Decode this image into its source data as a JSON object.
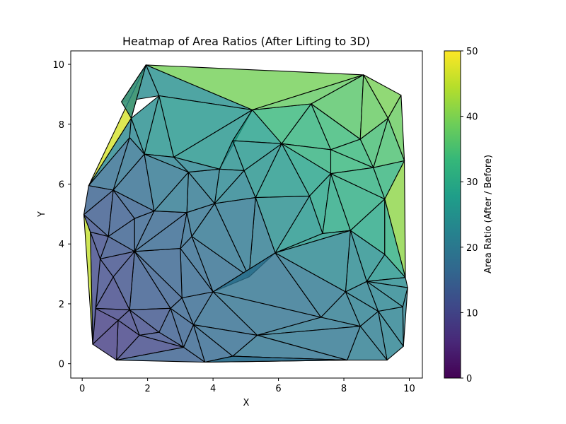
{
  "chart_data": {
    "type": "heatmap",
    "title": "Heatmap of Area Ratios (After Lifting to 3D)",
    "xlabel": "X",
    "ylabel": "Y",
    "xlim": [
      -0.35,
      10.4
    ],
    "ylim": [
      -0.48,
      10.45
    ],
    "xticks": [
      0,
      2,
      4,
      6,
      8,
      10
    ],
    "yticks": [
      0,
      2,
      4,
      6,
      8,
      10
    ],
    "colorbar": {
      "label": "Area Ratio (After / Before)",
      "range": [
        0,
        50
      ],
      "ticks": [
        0,
        10,
        20,
        30,
        40,
        50
      ],
      "colormap": [
        "#440154",
        "#482878",
        "#3e4989",
        "#31688e",
        "#26828e",
        "#1f9e89",
        "#35b779",
        "#6ece58",
        "#b5de2b",
        "#fde725"
      ]
    },
    "points": [
      [
        1.95,
        9.98
      ],
      [
        8.6,
        9.65
      ],
      [
        9.75,
        8.97
      ],
      [
        9.85,
        6.78
      ],
      [
        9.88,
        2.88
      ],
      [
        9.95,
        2.54
      ],
      [
        9.82,
        0.58
      ],
      [
        9.32,
        0.12
      ],
      [
        8.1,
        0.12
      ],
      [
        3.75,
        0.05
      ],
      [
        1.05,
        0.12
      ],
      [
        0.32,
        0.65
      ],
      [
        0.05,
        4.98
      ],
      [
        0.2,
        5.95
      ],
      [
        1.5,
        8.2
      ],
      [
        2.35,
        8.95
      ],
      [
        5.2,
        8.48
      ],
      [
        7.0,
        8.68
      ],
      [
        1.45,
        7.55
      ],
      [
        2.8,
        6.9
      ],
      [
        4.2,
        6.5
      ],
      [
        3.25,
        6.4
      ],
      [
        1.9,
        7.0
      ],
      [
        0.95,
        5.8
      ],
      [
        2.2,
        5.1
      ],
      [
        3.2,
        5.05
      ],
      [
        1.6,
        4.85
      ],
      [
        0.25,
        4.4
      ],
      [
        0.8,
        4.25
      ],
      [
        1.6,
        3.75
      ],
      [
        3.0,
        3.85
      ],
      [
        3.35,
        4.25
      ],
      [
        4.05,
        5.35
      ],
      [
        5.3,
        5.55
      ],
      [
        6.95,
        5.6
      ],
      [
        7.6,
        6.35
      ],
      [
        8.9,
        6.55
      ],
      [
        9.25,
        5.5
      ],
      [
        7.35,
        4.35
      ],
      [
        5.9,
        3.7
      ],
      [
        5.1,
        2.9
      ],
      [
        4.0,
        2.4
      ],
      [
        3.05,
        2.2
      ],
      [
        2.7,
        1.85
      ],
      [
        1.45,
        1.8
      ],
      [
        0.4,
        1.85
      ],
      [
        0.55,
        3.5
      ],
      [
        0.95,
        2.9
      ],
      [
        1.1,
        1.45
      ],
      [
        1.75,
        0.95
      ],
      [
        2.35,
        1.05
      ],
      [
        3.1,
        0.55
      ],
      [
        3.4,
        1.3
      ],
      [
        4.6,
        0.25
      ],
      [
        5.35,
        0.95
      ],
      [
        7.3,
        1.55
      ],
      [
        8.05,
        2.4
      ],
      [
        8.5,
        1.25
      ],
      [
        9.05,
        1.75
      ],
      [
        9.8,
        1.9
      ],
      [
        8.7,
        2.75
      ],
      [
        8.2,
        4.45
      ],
      [
        9.25,
        3.65
      ],
      [
        7.6,
        7.15
      ],
      [
        8.5,
        7.5
      ],
      [
        9.35,
        8.2
      ],
      [
        6.1,
        7.35
      ],
      [
        4.95,
        6.45
      ],
      [
        4.6,
        7.45
      ],
      [
        1.2,
        8.75
      ]
    ],
    "triangles": [
      [
        0,
        16,
        1,
        39.2
      ],
      [
        0,
        15,
        16,
        24.6
      ],
      [
        0,
        69,
        15,
        23.8
      ],
      [
        0,
        14,
        69,
        47.5
      ],
      [
        0,
        13,
        14,
        46.8
      ],
      [
        14,
        13,
        18,
        23.1
      ],
      [
        14,
        18,
        22,
        22.4
      ],
      [
        14,
        22,
        15,
        24.3
      ],
      [
        15,
        22,
        19,
        25.2
      ],
      [
        15,
        19,
        16,
        25.9
      ],
      [
        16,
        19,
        20,
        25.6
      ],
      [
        16,
        20,
        68,
        26.8
      ],
      [
        16,
        68,
        66,
        28.1
      ],
      [
        16,
        66,
        17,
        33.2
      ],
      [
        16,
        17,
        1,
        37.6
      ],
      [
        1,
        17,
        64,
        36.5
      ],
      [
        1,
        64,
        65,
        37.8
      ],
      [
        1,
        65,
        2,
        39.4
      ],
      [
        2,
        65,
        3,
        38.1
      ],
      [
        65,
        36,
        3,
        35.2
      ],
      [
        64,
        36,
        65,
        34.6
      ],
      [
        17,
        63,
        64,
        33.7
      ],
      [
        17,
        66,
        63,
        32.4
      ],
      [
        66,
        35,
        63,
        31.8
      ],
      [
        63,
        35,
        36,
        32.9
      ],
      [
        63,
        36,
        64,
        33.3
      ],
      [
        3,
        36,
        37,
        32.5
      ],
      [
        3,
        37,
        4,
        41.2
      ],
      [
        36,
        35,
        37,
        31.6
      ],
      [
        35,
        61,
        37,
        30.7
      ],
      [
        37,
        61,
        62,
        29.5
      ],
      [
        37,
        62,
        4,
        31.4
      ],
      [
        62,
        60,
        4,
        25.6
      ],
      [
        4,
        60,
        5,
        23.8
      ],
      [
        60,
        59,
        5,
        22.6
      ],
      [
        5,
        59,
        6,
        21.4
      ],
      [
        59,
        58,
        6,
        21.8
      ],
      [
        58,
        7,
        6,
        21.5
      ],
      [
        58,
        57,
        7,
        20.8
      ],
      [
        57,
        8,
        7,
        20.5
      ],
      [
        56,
        57,
        58,
        21.1
      ],
      [
        56,
        58,
        60,
        21.9
      ],
      [
        58,
        59,
        60,
        22.3
      ],
      [
        56,
        60,
        61,
        23.2
      ],
      [
        60,
        62,
        61,
        24.7
      ],
      [
        34,
        35,
        66,
        28.5
      ],
      [
        34,
        66,
        33,
        26.3
      ],
      [
        33,
        66,
        67,
        25.1
      ],
      [
        67,
        66,
        68,
        26.0
      ],
      [
        67,
        68,
        20,
        24.8
      ],
      [
        32,
        20,
        67,
        22.7
      ],
      [
        32,
        67,
        33,
        22.3
      ],
      [
        34,
        38,
        35,
        28.9
      ],
      [
        38,
        61,
        35,
        29.8
      ],
      [
        39,
        34,
        33,
        24.2
      ],
      [
        39,
        38,
        34,
        25.9
      ],
      [
        39,
        61,
        38,
        26.5
      ],
      [
        39,
        56,
        61,
        22.8
      ],
      [
        40,
        39,
        33,
        20.2
      ],
      [
        40,
        33,
        32,
        19.5
      ],
      [
        31,
        32,
        40,
        19.1
      ],
      [
        31,
        40,
        41,
        17.8
      ],
      [
        41,
        40,
        39,
        18.6
      ],
      [
        41,
        39,
        55,
        18.9
      ],
      [
        39,
        56,
        55,
        19.7
      ],
      [
        55,
        56,
        57,
        20.3
      ],
      [
        41,
        55,
        54,
        18.4
      ],
      [
        54,
        55,
        57,
        19.6
      ],
      [
        54,
        57,
        8,
        19.3
      ],
      [
        53,
        54,
        8,
        18.7
      ],
      [
        53,
        8,
        9,
        17.9
      ],
      [
        52,
        41,
        54,
        17.4
      ],
      [
        52,
        54,
        53,
        17.1
      ],
      [
        52,
        53,
        9,
        16.5
      ],
      [
        51,
        52,
        9,
        15.8
      ],
      [
        42,
        41,
        52,
        16.4
      ],
      [
        30,
        31,
        41,
        16.9
      ],
      [
        30,
        41,
        42,
        16.3
      ],
      [
        43,
        42,
        52,
        15.6
      ],
      [
        43,
        52,
        51,
        15.1
      ],
      [
        50,
        43,
        51,
        14.2
      ],
      [
        29,
        30,
        42,
        15.4
      ],
      [
        29,
        42,
        43,
        14.6
      ],
      [
        44,
        29,
        43,
        13.9
      ],
      [
        44,
        43,
        50,
        12.5
      ],
      [
        49,
        44,
        50,
        10.9
      ],
      [
        49,
        50,
        51,
        11.8
      ],
      [
        49,
        51,
        10,
        10.6
      ],
      [
        48,
        44,
        49,
        10.2
      ],
      [
        48,
        49,
        10,
        9.4
      ],
      [
        11,
        48,
        10,
        8.7
      ],
      [
        45,
        48,
        11,
        8.9
      ],
      [
        45,
        44,
        48,
        9.8
      ],
      [
        45,
        47,
        44,
        10.4
      ],
      [
        46,
        47,
        45,
        11.3
      ],
      [
        46,
        29,
        47,
        11.6
      ],
      [
        47,
        29,
        44,
        12.1
      ],
      [
        28,
        29,
        46,
        12.7
      ],
      [
        27,
        28,
        46,
        11.4
      ],
      [
        27,
        46,
        11,
        10.8
      ],
      [
        12,
        27,
        11,
        45.5
      ],
      [
        12,
        28,
        27,
        12.2
      ],
      [
        12,
        23,
        28,
        13.6
      ],
      [
        28,
        23,
        26,
        14.2
      ],
      [
        28,
        26,
        29,
        14.5
      ],
      [
        26,
        24,
        29,
        15.5
      ],
      [
        24,
        25,
        29,
        15.9
      ],
      [
        25,
        30,
        29,
        16.2
      ],
      [
        25,
        31,
        30,
        17.2
      ],
      [
        25,
        32,
        31,
        18.3
      ],
      [
        21,
        32,
        25,
        19.4
      ],
      [
        21,
        20,
        32,
        21.2
      ],
      [
        24,
        21,
        25,
        19.8
      ],
      [
        23,
        24,
        26,
        15.1
      ],
      [
        23,
        22,
        24,
        17.6
      ],
      [
        22,
        21,
        24,
        19.2
      ],
      [
        22,
        19,
        21,
        21.6
      ],
      [
        19,
        20,
        21,
        22.5
      ],
      [
        13,
        23,
        12,
        14.8
      ],
      [
        13,
        18,
        23,
        17.5
      ],
      [
        18,
        22,
        23,
        18.8
      ],
      [
        14,
        69,
        0,
        23.5
      ],
      [
        9,
        8,
        53,
        18.1
      ],
      [
        10,
        51,
        9,
        14.7
      ]
    ]
  }
}
